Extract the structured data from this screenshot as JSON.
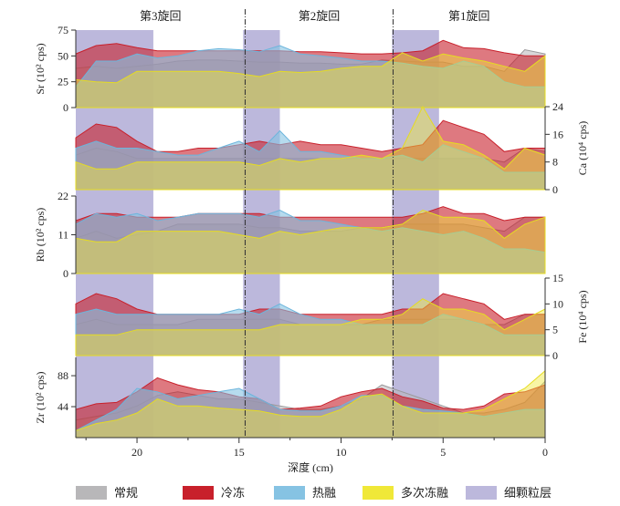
{
  "chart_data": {
    "type": "area",
    "xlabel": "深度 (cm)",
    "xlim": [
      23,
      0
    ],
    "xticks": [
      20,
      15,
      10,
      5,
      0
    ],
    "x": [
      23,
      22,
      21,
      20,
      19,
      18,
      17,
      16,
      15,
      14,
      13,
      12,
      11,
      10,
      9,
      8,
      7,
      6,
      5,
      4,
      3,
      2,
      1,
      0
    ],
    "cycles": [
      {
        "label": "第3旋回",
        "from": 23,
        "to": 14.7
      },
      {
        "label": "第2旋回",
        "from": 14.7,
        "to": 7.45
      },
      {
        "label": "第1旋回",
        "from": 7.45,
        "to": 0
      }
    ],
    "cycle_boundaries": [
      14.7,
      7.45
    ],
    "fine_grain_layers": [
      [
        23,
        19.2
      ],
      [
        14.8,
        13.0
      ],
      [
        7.5,
        5.2
      ]
    ],
    "series_names": [
      "常规",
      "冷冻",
      "热融",
      "多次冻融"
    ],
    "colors": {
      "常规": "#b8b7b9",
      "冷冻": "#c8202b",
      "热融": "#86c3e3",
      "多次冻融": "#f0e838",
      "细颗粒层": "#bcb8dc"
    },
    "legend": [
      "常规",
      "冷冻",
      "热融",
      "多次冻融",
      "细颗粒层"
    ],
    "legend_placement": "bottom",
    "panels": [
      {
        "element": "Sr",
        "ylabel": "Sr (10² cps)",
        "axis": "left",
        "ylim": [
          0,
          75
        ],
        "yticks": [
          0,
          25,
          50,
          75
        ],
        "series": {
          "常规": [
            38,
            40,
            38,
            40,
            42,
            45,
            46,
            46,
            45,
            44,
            44,
            43,
            43,
            42,
            42,
            46,
            45,
            44,
            44,
            40,
            40,
            35,
            56,
            52
          ],
          "冷冻": [
            52,
            60,
            62,
            58,
            55,
            55,
            55,
            55,
            55,
            55,
            55,
            54,
            54,
            53,
            52,
            52,
            53,
            55,
            65,
            58,
            57,
            53,
            50,
            50
          ],
          "热融": [
            20,
            45,
            45,
            52,
            48,
            50,
            55,
            57,
            56,
            54,
            60,
            52,
            50,
            48,
            45,
            45,
            43,
            40,
            38,
            45,
            40,
            25,
            20,
            20
          ],
          "多次冻融": [
            27,
            25,
            24,
            35,
            35,
            35,
            35,
            35,
            33,
            30,
            35,
            34,
            35,
            38,
            40,
            40,
            53,
            45,
            52,
            48,
            45,
            40,
            35,
            50
          ]
        }
      },
      {
        "element": "Ca",
        "ylabel": "Ca (10⁴ cps)",
        "axis": "right",
        "ylim": [
          0,
          24
        ],
        "yticks": [
          0,
          8,
          16,
          24
        ],
        "series": {
          "常规": [
            10,
            12,
            11,
            9,
            9,
            9,
            9,
            9,
            9,
            9,
            9,
            9,
            9,
            9,
            9,
            9,
            9,
            9,
            9,
            9,
            9,
            8,
            12,
            11
          ],
          "冷冻": [
            15,
            19,
            18,
            14,
            11,
            11,
            12,
            12,
            13,
            14,
            13,
            14,
            13,
            13,
            12,
            11,
            12,
            13,
            20,
            18,
            16,
            11,
            12,
            12
          ],
          "热融": [
            12,
            14,
            12,
            12,
            11,
            10,
            10,
            12,
            14,
            11,
            17,
            11,
            11,
            10,
            9,
            9,
            10,
            8,
            13,
            11,
            9,
            5,
            5,
            5
          ],
          "多次冻融": [
            8,
            6,
            6,
            8,
            8,
            8,
            8,
            8,
            8,
            7,
            9,
            8,
            9,
            9,
            10,
            9,
            12,
            24,
            14,
            13,
            10,
            6,
            12,
            10
          ]
        }
      },
      {
        "element": "Rb",
        "ylabel": "Rb (10² cps)",
        "axis": "left",
        "ylim": [
          0,
          22
        ],
        "yticks": [
          0,
          11,
          22
        ],
        "series": {
          "常规": [
            10,
            12,
            10,
            11,
            12,
            14,
            14,
            14,
            14,
            13,
            13,
            12,
            12,
            12,
            13,
            13,
            14,
            14,
            14,
            14,
            13,
            12,
            16,
            16
          ],
          "冷冻": [
            15,
            17,
            17,
            16,
            16,
            16,
            17,
            17,
            17,
            17,
            16,
            16,
            16,
            16,
            16,
            16,
            16,
            17,
            19,
            17,
            17,
            15,
            16,
            16
          ],
          "热融": [
            14,
            17,
            16,
            17,
            15,
            16,
            17,
            17,
            17,
            16,
            18,
            15,
            15,
            14,
            13,
            12,
            13,
            12,
            11,
            12,
            10,
            7,
            7,
            6
          ],
          "多次冻融": [
            10,
            9,
            9,
            12,
            12,
            12,
            12,
            12,
            11,
            10,
            12,
            11,
            12,
            13,
            13,
            13,
            14,
            18,
            16,
            16,
            15,
            10,
            14,
            16
          ]
        }
      },
      {
        "element": "Fe",
        "ylabel": "Fe (10⁴ cps)",
        "axis": "right",
        "ylim": [
          0,
          15
        ],
        "yticks": [
          0,
          5,
          10,
          15
        ],
        "series": {
          "常规": [
            6,
            7,
            6,
            6,
            6,
            6,
            7,
            7,
            7,
            7,
            7,
            6,
            6,
            6,
            6,
            7,
            7,
            7,
            7,
            7,
            6,
            6,
            8,
            8
          ],
          "冷冻": [
            10,
            12,
            11,
            9,
            8,
            8,
            8,
            8,
            8,
            9,
            9,
            8,
            8,
            8,
            8,
            8,
            9,
            9,
            12,
            11,
            10,
            7,
            8,
            8
          ],
          "热融": [
            8,
            9,
            8,
            8,
            8,
            8,
            8,
            8,
            9,
            8,
            10,
            8,
            7,
            7,
            6,
            6,
            6,
            6,
            8,
            7,
            6,
            4,
            4,
            4
          ],
          "多次冻融": [
            4,
            4,
            4,
            5,
            5,
            5,
            5,
            5,
            5,
            5,
            6,
            6,
            6,
            6,
            7,
            7,
            8,
            11,
            9,
            9,
            8,
            5,
            7,
            9
          ]
        }
      },
      {
        "element": "Zr",
        "ylabel": "Zr (10² cps)",
        "axis": "left",
        "ylim": [
          0,
          114
        ],
        "yticks": [
          44,
          88
        ],
        "series": {
          "常规": [
            25,
            30,
            35,
            45,
            60,
            65,
            60,
            55,
            55,
            50,
            45,
            40,
            40,
            45,
            55,
            75,
            65,
            55,
            45,
            35,
            35,
            40,
            50,
            80
          ],
          "冷冻": [
            40,
            48,
            50,
            65,
            85,
            75,
            68,
            65,
            58,
            55,
            40,
            42,
            45,
            58,
            65,
            70,
            58,
            52,
            42,
            40,
            45,
            62,
            65,
            75
          ],
          "热融": [
            10,
            25,
            40,
            70,
            65,
            55,
            60,
            65,
            70,
            55,
            40,
            38,
            38,
            45,
            60,
            60,
            45,
            40,
            38,
            35,
            30,
            35,
            40,
            40
          ],
          "多次冻融": [
            10,
            20,
            25,
            35,
            55,
            45,
            45,
            42,
            40,
            38,
            32,
            30,
            30,
            40,
            58,
            62,
            45,
            35,
            35,
            35,
            40,
            55,
            70,
            95
          ]
        }
      }
    ]
  }
}
